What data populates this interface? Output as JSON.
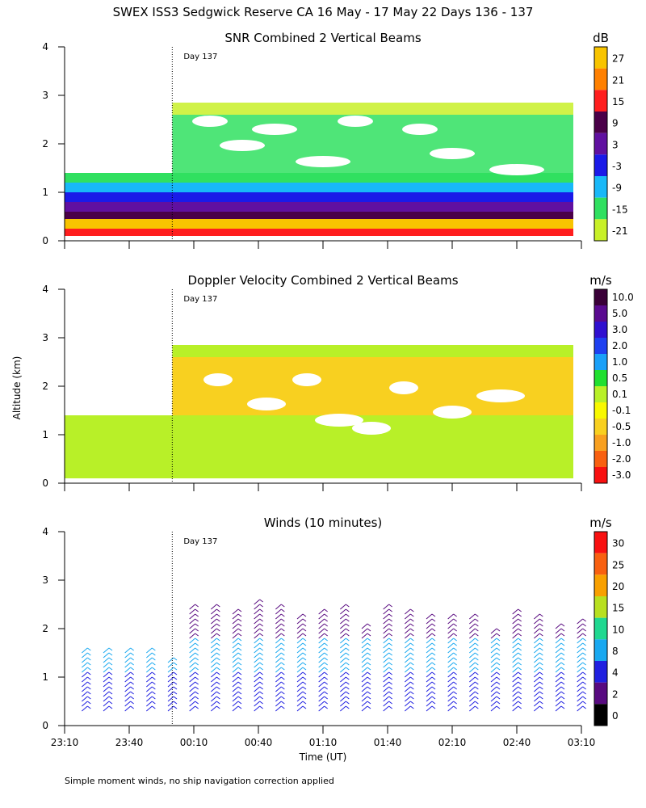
{
  "figure": {
    "title": "SWEX ISS3 Sedgwick Reserve CA  16 May - 17 May 22 Days 136 - 137",
    "ylabel": "Altitude (km)",
    "xlabel": "Time (UT)",
    "footnote": "Simple moment winds, no ship navigation correction applied",
    "day_marker": "Day 137",
    "day_marker_time": "00:00"
  },
  "chart_data": [
    {
      "type": "heatmap",
      "title": "SNR Combined 2 Vertical Beams",
      "colorbar_unit": "dB",
      "colorbar_labels": [
        "27",
        "21",
        "15",
        "9",
        "3",
        "-3",
        "-9",
        "-15",
        "-21"
      ],
      "colorbar_colors": [
        "#f8c400",
        "#ff8000",
        "#ff1e1e",
        "#4a0048",
        "#6010a0",
        "#1a1ae8",
        "#18b8f8",
        "#30e060",
        "#c8f028"
      ],
      "xlabels": [
        "23:10",
        "23:40",
        "00:10",
        "00:40",
        "01:10",
        "01:40",
        "02:10",
        "02:40",
        "03:10"
      ],
      "ylabels": [
        "0",
        "1",
        "2",
        "3",
        "4"
      ],
      "yrange_km": [
        0,
        4
      ],
      "layers": [
        {
          "from_km": 0.1,
          "to_km": 0.25,
          "snr_db": 15
        },
        {
          "from_km": 0.25,
          "to_km": 0.45,
          "snr_db": 25
        },
        {
          "from_km": 0.45,
          "to_km": 0.6,
          "snr_db": 9
        },
        {
          "from_km": 0.6,
          "to_km": 0.8,
          "snr_db": 3
        },
        {
          "from_km": 0.8,
          "to_km": 1.0,
          "snr_db": -3
        },
        {
          "from_km": 1.0,
          "to_km": 1.2,
          "snr_db": -9
        },
        {
          "from_km": 1.2,
          "to_km": 1.4,
          "snr_db": -15
        },
        {
          "from_km": 1.4,
          "to_km": 2.6,
          "snr_db": -18
        },
        {
          "from_km": 2.6,
          "to_km": 2.85,
          "snr_db": -21
        }
      ]
    },
    {
      "type": "heatmap",
      "title": "Doppler Velocity Combined 2 Vertical Beams",
      "colorbar_unit": "m/s",
      "colorbar_labels": [
        "10.0",
        "5.0",
        "3.0",
        "2.0",
        "1.0",
        "0.5",
        "0.1",
        "-0.1",
        "-0.5",
        "-1.0",
        "-2.0",
        "-3.0"
      ],
      "colorbar_colors": [
        "#3a0038",
        "#5a0a90",
        "#3010d0",
        "#1e40f0",
        "#1aa0f8",
        "#20e030",
        "#b8f028",
        "#f8f800",
        "#f8d020",
        "#f8a020",
        "#f86010",
        "#f81010"
      ],
      "xlabels": [
        "23:10",
        "23:40",
        "00:10",
        "00:40",
        "01:10",
        "01:40",
        "02:10",
        "02:40",
        "03:10"
      ],
      "ylabels": [
        "0",
        "1",
        "2",
        "3",
        "4"
      ],
      "yrange_km": [
        0,
        4
      ],
      "regions": [
        {
          "from_km": 0.1,
          "to_km": 1.4,
          "velocity_ms": 0.0
        },
        {
          "from_km": 1.4,
          "to_km": 2.6,
          "velocity_ms": -0.5
        },
        {
          "from_km": 2.6,
          "to_km": 2.85,
          "velocity_ms": 0.0
        }
      ]
    },
    {
      "type": "scatter",
      "title": "Winds (10 minutes)",
      "colorbar_unit": "m/s",
      "colorbar_labels": [
        "30",
        "25",
        "20",
        "15",
        "10",
        "8",
        "4",
        "2",
        "0"
      ],
      "colorbar_colors": [
        "#f81010",
        "#f86010",
        "#f8a000",
        "#b8e020",
        "#20d890",
        "#18a8f0",
        "#2020e0",
        "#580a80",
        "#000000"
      ],
      "xlabels": [
        "23:10",
        "23:40",
        "00:10",
        "00:40",
        "01:10",
        "01:40",
        "02:10",
        "02:40",
        "03:10"
      ],
      "ylabels": [
        "0",
        "1",
        "2",
        "3",
        "4"
      ],
      "yrange_km": [
        0,
        4
      ],
      "xrange": [
        "23:10",
        "03:10"
      ],
      "profiles": [
        {
          "time": "23:18",
          "top_km": 1.6
        },
        {
          "time": "23:28",
          "top_km": 1.6
        },
        {
          "time": "23:38",
          "top_km": 1.6
        },
        {
          "time": "23:48",
          "top_km": 1.6
        },
        {
          "time": "23:58",
          "top_km": 1.3
        },
        {
          "time": "00:08",
          "top_km": 2.5
        },
        {
          "time": "00:18",
          "top_km": 2.5
        },
        {
          "time": "00:28",
          "top_km": 2.4
        },
        {
          "time": "00:38",
          "top_km": 2.6
        },
        {
          "time": "00:48",
          "top_km": 2.5
        },
        {
          "time": "00:58",
          "top_km": 2.3
        },
        {
          "time": "01:08",
          "top_km": 2.4
        },
        {
          "time": "01:18",
          "top_km": 2.5
        },
        {
          "time": "01:28",
          "top_km": 2.1
        },
        {
          "time": "01:38",
          "top_km": 2.5
        },
        {
          "time": "01:48",
          "top_km": 2.4
        },
        {
          "time": "01:58",
          "top_km": 2.3
        },
        {
          "time": "02:08",
          "top_km": 2.3
        },
        {
          "time": "02:18",
          "top_km": 2.3
        },
        {
          "time": "02:28",
          "top_km": 2.0
        },
        {
          "time": "02:38",
          "top_km": 2.4
        },
        {
          "time": "02:48",
          "top_km": 2.3
        },
        {
          "time": "02:58",
          "top_km": 2.1
        },
        {
          "time": "03:08",
          "top_km": 2.2
        }
      ]
    }
  ]
}
